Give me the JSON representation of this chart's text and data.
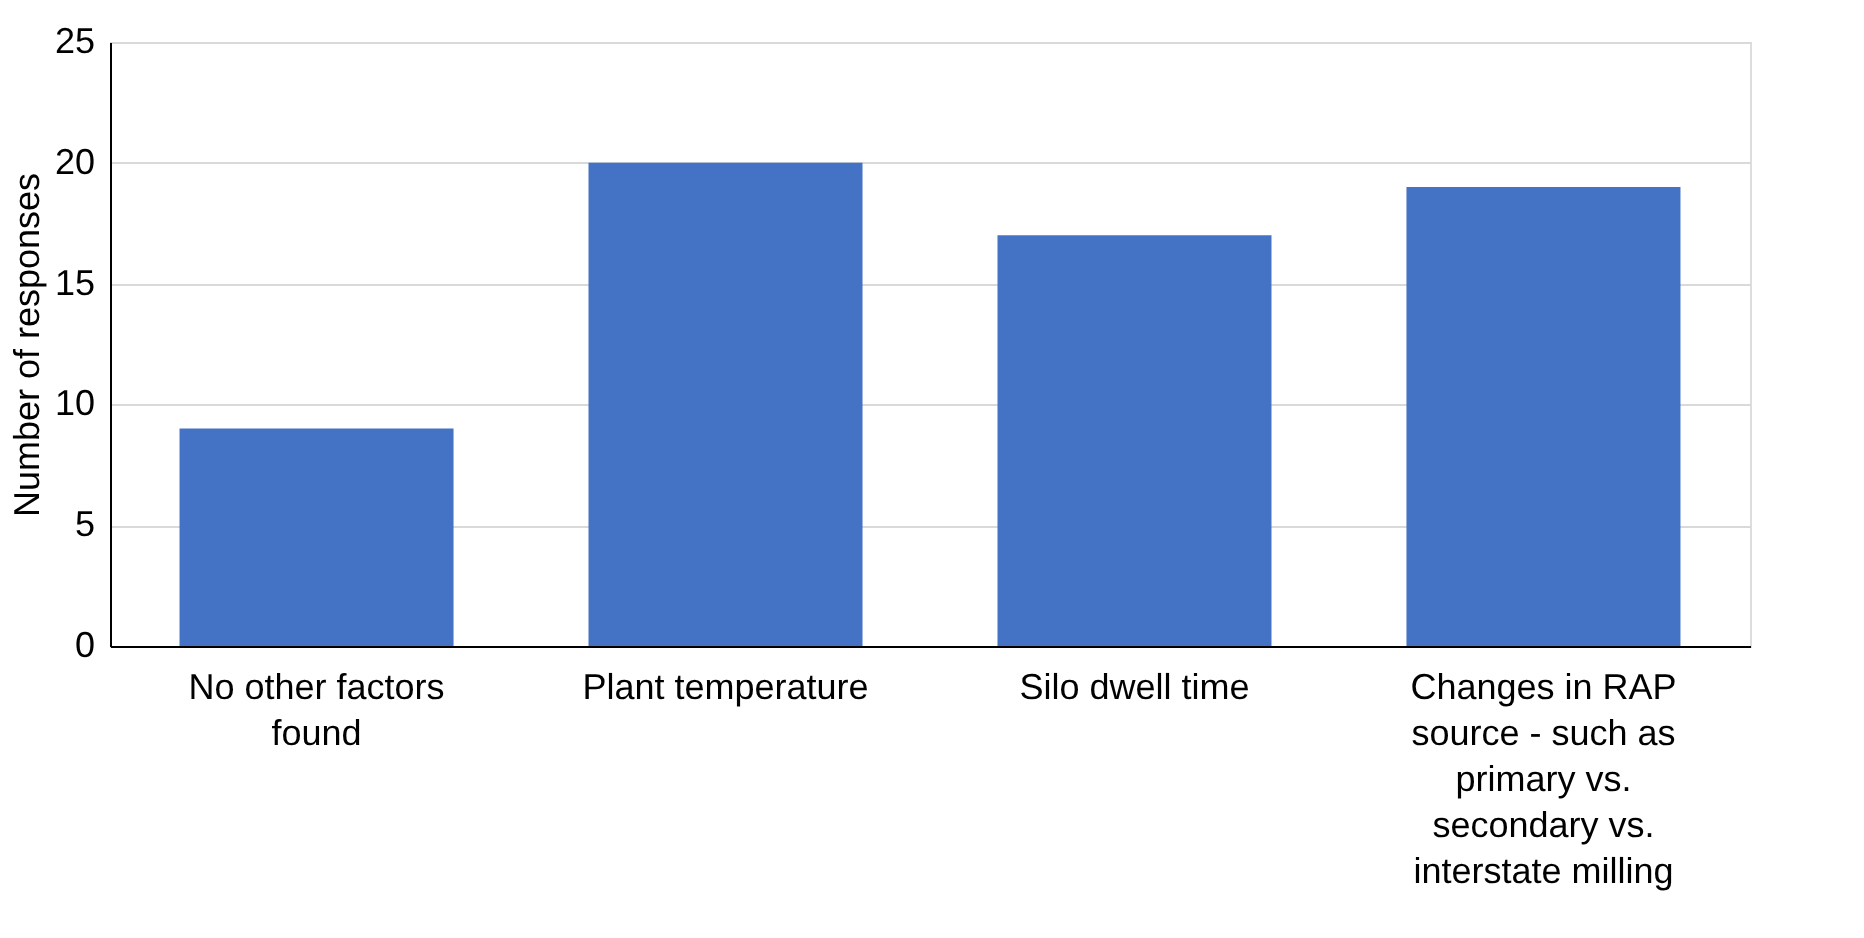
{
  "chart_data": {
    "type": "bar",
    "ylabel": "Number of responses",
    "categories": [
      "No other factors found",
      "Plant temperature",
      "Silo dwell time",
      "Changes in RAP source - such as primary vs. secondary vs. interstate milling"
    ],
    "values": [
      9,
      20,
      17,
      19
    ],
    "color": "#4472c4",
    "ylim": [
      0,
      25
    ],
    "yticks": [
      0,
      5,
      10,
      15,
      20,
      25
    ],
    "grid": "y"
  }
}
